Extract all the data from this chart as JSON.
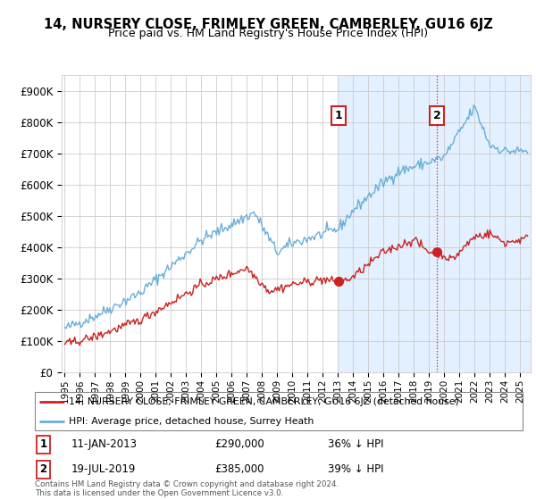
{
  "title": "14, NURSERY CLOSE, FRIMLEY GREEN, CAMBERLEY, GU16 6JZ",
  "subtitle": "Price paid vs. HM Land Registry's House Price Index (HPI)",
  "legend_line1": "14, NURSERY CLOSE, FRIMLEY GREEN, CAMBERLEY, GU16 6JZ (detached house)",
  "legend_line2": "HPI: Average price, detached house, Surrey Heath",
  "annotation1_date": "11-JAN-2013",
  "annotation1_price": "£290,000",
  "annotation1_pct": "36% ↓ HPI",
  "annotation2_date": "19-JUL-2019",
  "annotation2_price": "£385,000",
  "annotation2_pct": "39% ↓ HPI",
  "footer": "Contains HM Land Registry data © Crown copyright and database right 2024.\nThis data is licensed under the Open Government Licence v3.0.",
  "hpi_color": "#6baed6",
  "price_color": "#cc2222",
  "annotation_vline_color": "#cc2222",
  "highlight_color": "#ddeeff",
  "ylim": [
    0,
    950000
  ],
  "yticks": [
    0,
    100000,
    200000,
    300000,
    400000,
    500000,
    600000,
    700000,
    800000,
    900000
  ],
  "ytick_labels": [
    "£0",
    "£100K",
    "£200K",
    "£300K",
    "£400K",
    "£500K",
    "£600K",
    "£700K",
    "£800K",
    "£900K"
  ],
  "sale1_x": 2013.03,
  "sale1_y": 290000,
  "sale2_x": 2019.54,
  "sale2_y": 385000,
  "xmin": 1994.8,
  "xmax": 2025.7
}
